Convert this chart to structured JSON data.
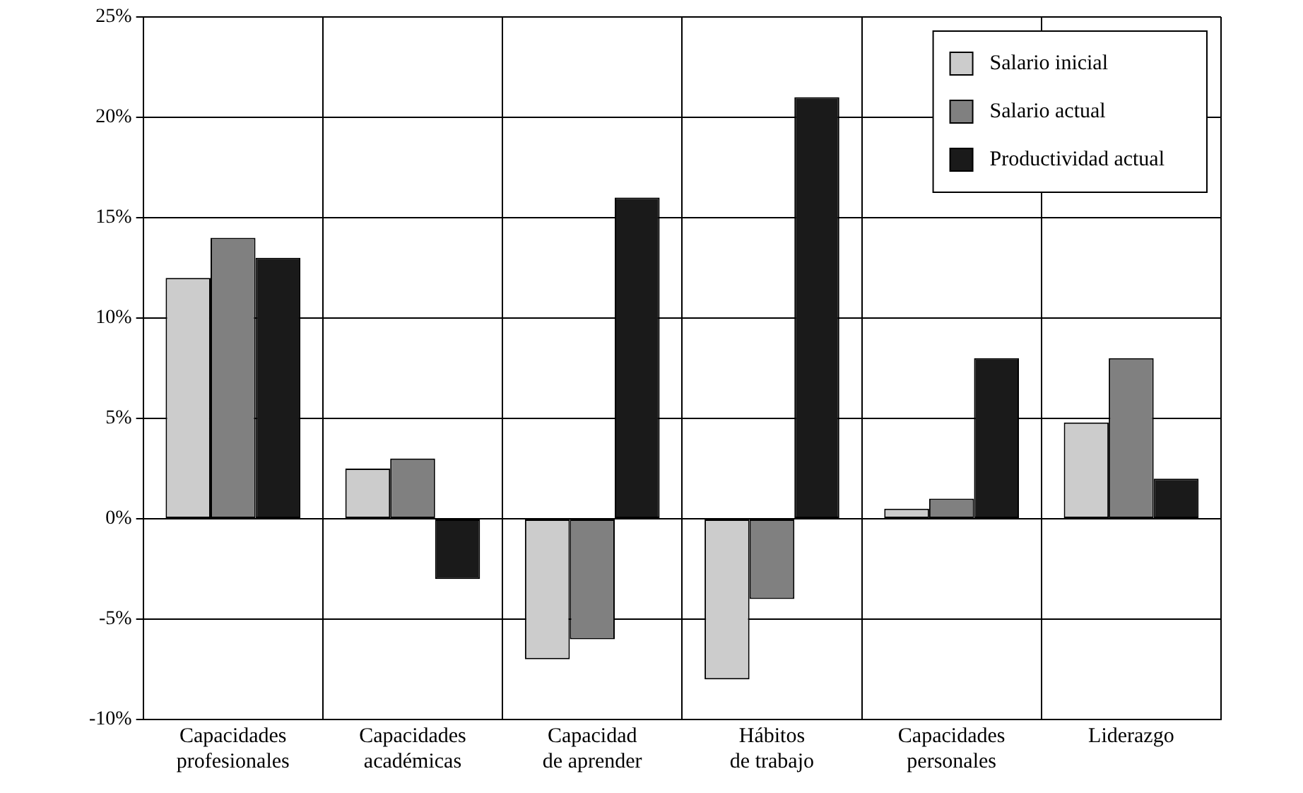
{
  "chart_data": {
    "type": "bar",
    "categories": [
      "Capacidades profesionales",
      "Capacidades académicas",
      "Capacidad de aprender",
      "Hábitos de trabajo",
      "Capacidades personales",
      "Liderazgo"
    ],
    "series": [
      {
        "name": "Salario inicial",
        "color": "#cccccc",
        "values": [
          12,
          2.5,
          -7,
          -8,
          0.5,
          4.8
        ]
      },
      {
        "name": "Salario actual",
        "color": "#808080",
        "values": [
          14,
          3,
          -6,
          -4,
          1,
          8
        ]
      },
      {
        "name": "Productividad actual",
        "color": "#1a1a1a",
        "values": [
          13,
          -3,
          16,
          21,
          8,
          2
        ]
      }
    ],
    "ylim": [
      -10,
      25
    ],
    "yticks": [
      {
        "value": -10,
        "label": "-10%"
      },
      {
        "value": -5,
        "label": "-5%"
      },
      {
        "value": 0,
        "label": "0%"
      },
      {
        "value": 5,
        "label": "5%"
      },
      {
        "value": 10,
        "label": "10%"
      },
      {
        "value": 15,
        "label": "15%"
      },
      {
        "value": 20,
        "label": "20%"
      },
      {
        "value": 25,
        "label": "25%"
      }
    ],
    "grid": true,
    "legend": "top right"
  }
}
